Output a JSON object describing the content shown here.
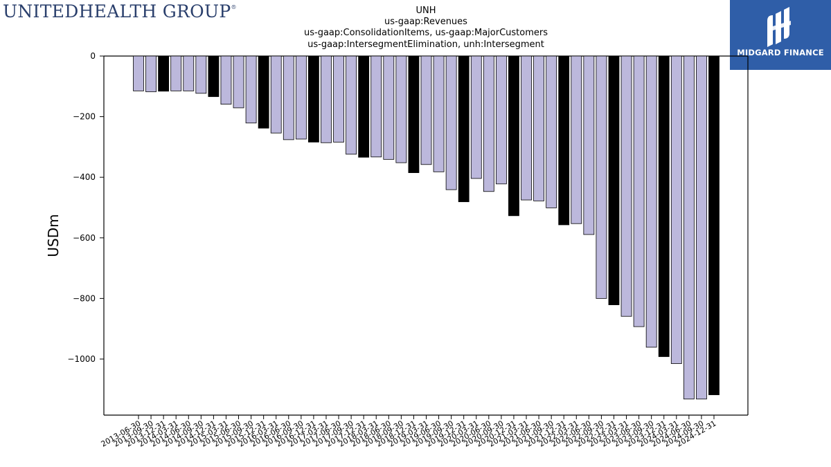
{
  "logos": {
    "left": {
      "name": "UNITEDHEALTH GROUP",
      "mark": "®"
    },
    "right": {
      "name": "MIDGARD FINANCE",
      "color": "#2f5ea8"
    }
  },
  "chart_data": {
    "type": "bar",
    "title_lines": [
      "UNH",
      "us-gaap:Revenues",
      "us-gaap:ConsolidationItems, us-gaap:MajorCustomers",
      "us-gaap:IntersegmentElimination, unh:Intersegment"
    ],
    "xlabel": "",
    "ylabel": "USDm",
    "ylim": [
      -1185,
      0
    ],
    "yticks": [
      0,
      -200,
      -400,
      -600,
      -800,
      -1000
    ],
    "ytick_labels": [
      "0",
      "−200",
      "−400",
      "−600",
      "−800",
      "−1000"
    ],
    "colors": {
      "quarter": "#bcb8dc",
      "year_end": "#000000",
      "edge": "#000000"
    },
    "categories": [
      "2013-06-30",
      "2013-09-30",
      "2013-12-31",
      "2014-03-31",
      "2014-06-30",
      "2014-09-30",
      "2014-12-31",
      "2015-03-31",
      "2015-06-30",
      "2015-09-30",
      "2015-12-31",
      "2016-03-31",
      "2016-06-30",
      "2016-09-30",
      "2016-12-31",
      "2017-03-31",
      "2017-06-30",
      "2017-09-30",
      "2017-12-31",
      "2018-03-31",
      "2018-06-30",
      "2018-09-30",
      "2018-12-31",
      "2019-03-31",
      "2019-06-30",
      "2019-09-30",
      "2019-12-31",
      "2020-03-31",
      "2020-06-30",
      "2020-09-30",
      "2020-12-31",
      "2021-03-31",
      "2021-06-30",
      "2021-09-30",
      "2021-12-31",
      "2022-03-31",
      "2022-06-30",
      "2022-09-30",
      "2022-12-31",
      "2023-03-31",
      "2023-06-30",
      "2023-09-30",
      "2023-12-31",
      "2024-03-31",
      "2024-06-30",
      "2024-09-30",
      "2024-12-31"
    ],
    "values": [
      -115,
      -118,
      -116,
      -115,
      -115,
      -123,
      -134,
      -159,
      -171,
      -221,
      -238,
      -254,
      -276,
      -274,
      -284,
      -286,
      -284,
      -324,
      -334,
      -333,
      -341,
      -352,
      -385,
      -358,
      -382,
      -441,
      -481,
      -404,
      -447,
      -422,
      -527,
      -475,
      -478,
      -501,
      -557,
      -553,
      -589,
      -800,
      -821,
      -859,
      -893,
      -961,
      -992,
      -1015,
      -1132,
      -1132,
      -1118
    ],
    "year_end": [
      false,
      false,
      true,
      false,
      false,
      false,
      true,
      false,
      false,
      false,
      true,
      false,
      false,
      false,
      true,
      false,
      false,
      false,
      true,
      false,
      false,
      false,
      true,
      false,
      false,
      false,
      true,
      false,
      false,
      false,
      true,
      false,
      false,
      false,
      true,
      false,
      false,
      false,
      true,
      false,
      false,
      false,
      true,
      false,
      false,
      false,
      true
    ]
  }
}
